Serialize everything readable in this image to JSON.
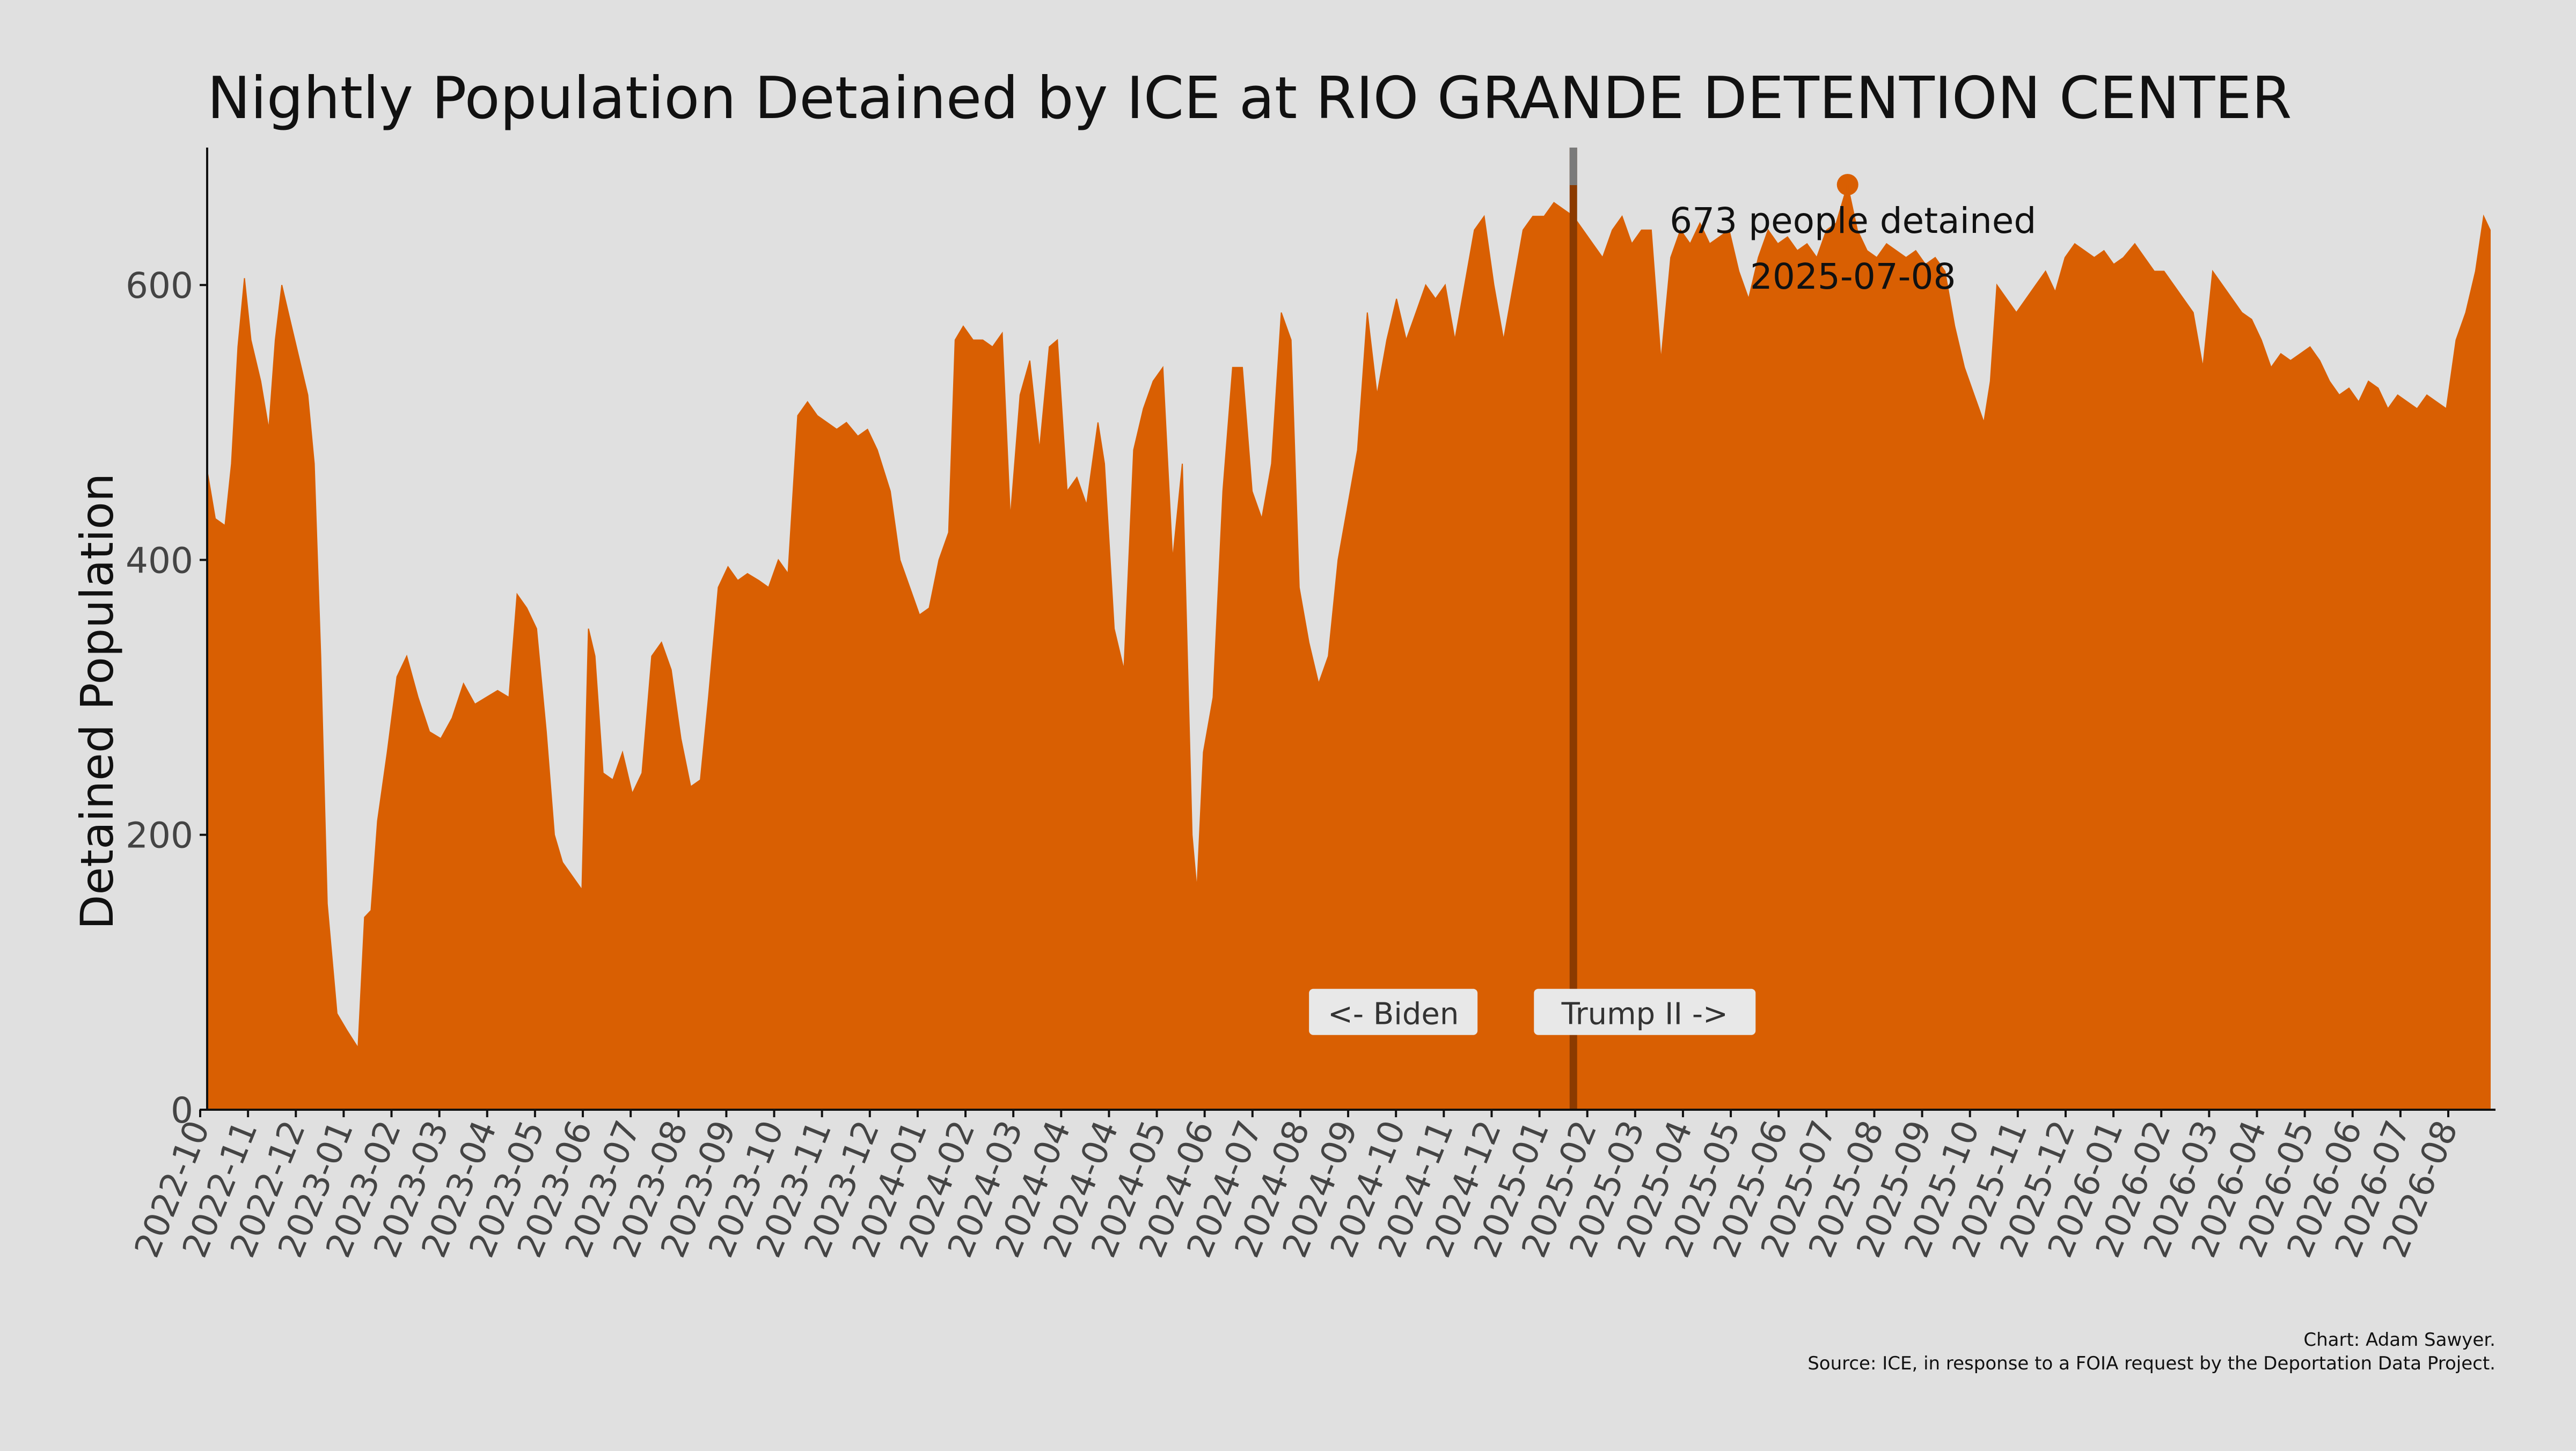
{
  "chart_data": {
    "type": "area",
    "title": "Nightly Population Detained by ICE at RIO GRANDE DETENTION CENTER",
    "xlabel": "",
    "ylabel": "Detained Population",
    "ylim": [
      0,
      700
    ],
    "y_ticks": [
      0,
      200,
      400,
      600
    ],
    "x_range": [
      "2022-10-01",
      "2026-08-08"
    ],
    "x_tick_labels": [
      "2022-10",
      "2022-11",
      "2022-12",
      "2023-01",
      "2023-02",
      "2023-03",
      "2023-04",
      "2023-05",
      "2023-06",
      "2023-07",
      "2023-08",
      "2023-09",
      "2023-10",
      "2023-11",
      "2023-12",
      "2024-01",
      "2024-02",
      "2024-03",
      "2024-04",
      "2024-04",
      "2024-05",
      "2024-06",
      "2024-07",
      "2024-08",
      "2024-09",
      "2024-10",
      "2024-11",
      "2024-12",
      "2025-01",
      "2025-02",
      "2025-03",
      "2025-04",
      "2025-05",
      "2025-06",
      "2025-07",
      "2025-08",
      "2025-09",
      "2025-10",
      "2025-11",
      "2025-12",
      "2026-01",
      "2026-02",
      "2026-03",
      "2026-04",
      "2026-05",
      "2026-06",
      "2026-07",
      "2026-08"
    ],
    "grid": false,
    "colors": {
      "fill": "#d95f02",
      "divider": "#8b3a00",
      "divider_top": "#7a7a7a",
      "background": "#e0e0e0",
      "label_box": "#e8e8e8"
    },
    "series": [
      {
        "values": [
          [
            "2022-10-01",
            465
          ],
          [
            "2022-10-06",
            430
          ],
          [
            "2022-10-12",
            425
          ],
          [
            "2022-10-16",
            470
          ],
          [
            "2022-10-20",
            555
          ],
          [
            "2022-10-24",
            605
          ],
          [
            "2022-10-28",
            560
          ],
          [
            "2022-11-03",
            530
          ],
          [
            "2022-11-08",
            495
          ],
          [
            "2022-11-12",
            560
          ],
          [
            "2022-11-16",
            600
          ],
          [
            "2022-11-22",
            570
          ],
          [
            "2022-11-28",
            540
          ],
          [
            "2022-12-02",
            520
          ],
          [
            "2022-12-06",
            470
          ],
          [
            "2022-12-10",
            330
          ],
          [
            "2022-12-14",
            150
          ],
          [
            "2022-12-20",
            70
          ],
          [
            "2022-12-26",
            58
          ],
          [
            "2023-01-02",
            45
          ],
          [
            "2023-01-06",
            140
          ],
          [
            "2023-01-10",
            145
          ],
          [
            "2023-01-14",
            210
          ],
          [
            "2023-01-20",
            260
          ],
          [
            "2023-01-26",
            315
          ],
          [
            "2023-02-01",
            330
          ],
          [
            "2023-02-08",
            300
          ],
          [
            "2023-02-15",
            275
          ],
          [
            "2023-02-22",
            270
          ],
          [
            "2023-03-01",
            285
          ],
          [
            "2023-03-08",
            310
          ],
          [
            "2023-03-15",
            295
          ],
          [
            "2023-03-22",
            300
          ],
          [
            "2023-03-29",
            305
          ],
          [
            "2023-04-05",
            300
          ],
          [
            "2023-04-10",
            375
          ],
          [
            "2023-04-16",
            365
          ],
          [
            "2023-04-22",
            350
          ],
          [
            "2023-04-28",
            275
          ],
          [
            "2023-05-03",
            200
          ],
          [
            "2023-05-08",
            180
          ],
          [
            "2023-05-14",
            170
          ],
          [
            "2023-05-20",
            160
          ],
          [
            "2023-05-24",
            350
          ],
          [
            "2023-05-28",
            330
          ],
          [
            "2023-06-02",
            245
          ],
          [
            "2023-06-08",
            240
          ],
          [
            "2023-06-14",
            260
          ],
          [
            "2023-06-20",
            230
          ],
          [
            "2023-06-26",
            245
          ],
          [
            "2023-07-02",
            330
          ],
          [
            "2023-07-08",
            340
          ],
          [
            "2023-07-14",
            320
          ],
          [
            "2023-07-20",
            270
          ],
          [
            "2023-07-26",
            235
          ],
          [
            "2023-08-01",
            240
          ],
          [
            "2023-08-06",
            300
          ],
          [
            "2023-08-12",
            380
          ],
          [
            "2023-08-18",
            395
          ],
          [
            "2023-08-24",
            385
          ],
          [
            "2023-08-30",
            390
          ],
          [
            "2023-09-06",
            385
          ],
          [
            "2023-09-12",
            380
          ],
          [
            "2023-09-18",
            400
          ],
          [
            "2023-09-24",
            390
          ],
          [
            "2023-09-30",
            505
          ],
          [
            "2023-10-06",
            515
          ],
          [
            "2023-10-12",
            505
          ],
          [
            "2023-10-18",
            500
          ],
          [
            "2023-10-24",
            495
          ],
          [
            "2023-10-30",
            500
          ],
          [
            "2023-11-06",
            490
          ],
          [
            "2023-11-12",
            495
          ],
          [
            "2023-11-18",
            480
          ],
          [
            "2023-11-26",
            450
          ],
          [
            "2023-12-02",
            400
          ],
          [
            "2023-12-08",
            380
          ],
          [
            "2023-12-14",
            360
          ],
          [
            "2023-12-20",
            365
          ],
          [
            "2023-12-26",
            400
          ],
          [
            "2024-01-01",
            420
          ],
          [
            "2024-01-05",
            560
          ],
          [
            "2024-01-10",
            570
          ],
          [
            "2024-01-16",
            560
          ],
          [
            "2024-01-22",
            560
          ],
          [
            "2024-01-28",
            555
          ],
          [
            "2024-02-03",
            565
          ],
          [
            "2024-02-08",
            430
          ],
          [
            "2024-02-14",
            520
          ],
          [
            "2024-02-20",
            545
          ],
          [
            "2024-02-26",
            480
          ],
          [
            "2024-03-03",
            555
          ],
          [
            "2024-03-08",
            560
          ],
          [
            "2024-03-14",
            450
          ],
          [
            "2024-03-20",
            460
          ],
          [
            "2024-03-26",
            440
          ],
          [
            "2024-04-02",
            500
          ],
          [
            "2024-04-06",
            470
          ],
          [
            "2024-04-12",
            350
          ],
          [
            "2024-04-18",
            320
          ],
          [
            "2024-04-24",
            480
          ],
          [
            "2024-04-30",
            510
          ],
          [
            "2024-05-06",
            530
          ],
          [
            "2024-05-12",
            540
          ],
          [
            "2024-05-18",
            400
          ],
          [
            "2024-05-24",
            470
          ],
          [
            "2024-05-30",
            200
          ],
          [
            "2024-06-02",
            160
          ],
          [
            "2024-06-06",
            260
          ],
          [
            "2024-06-12",
            300
          ],
          [
            "2024-06-18",
            450
          ],
          [
            "2024-06-24",
            540
          ],
          [
            "2024-06-30",
            540
          ],
          [
            "2024-07-06",
            450
          ],
          [
            "2024-07-12",
            430
          ],
          [
            "2024-07-18",
            470
          ],
          [
            "2024-07-24",
            580
          ],
          [
            "2024-07-30",
            560
          ],
          [
            "2024-08-04",
            380
          ],
          [
            "2024-08-10",
            340
          ],
          [
            "2024-08-16",
            310
          ],
          [
            "2024-08-22",
            330
          ],
          [
            "2024-08-28",
            400
          ],
          [
            "2024-09-03",
            440
          ],
          [
            "2024-09-09",
            480
          ],
          [
            "2024-09-15",
            580
          ],
          [
            "2024-09-21",
            520
          ],
          [
            "2024-09-27",
            560
          ],
          [
            "2024-10-03",
            590
          ],
          [
            "2024-10-09",
            560
          ],
          [
            "2024-10-15",
            580
          ],
          [
            "2024-10-21",
            600
          ],
          [
            "2024-10-27",
            590
          ],
          [
            "2024-11-02",
            600
          ],
          [
            "2024-11-08",
            560
          ],
          [
            "2024-11-14",
            600
          ],
          [
            "2024-11-20",
            640
          ],
          [
            "2024-11-26",
            650
          ],
          [
            "2024-12-02",
            600
          ],
          [
            "2024-12-08",
            560
          ],
          [
            "2024-12-14",
            600
          ],
          [
            "2024-12-20",
            640
          ],
          [
            "2024-12-26",
            650
          ],
          [
            "2025-01-02",
            650
          ],
          [
            "2025-01-08",
            660
          ],
          [
            "2025-01-14",
            655
          ],
          [
            "2025-01-20",
            650
          ],
          [
            "2025-01-26",
            640
          ],
          [
            "2025-02-01",
            630
          ],
          [
            "2025-02-07",
            620
          ],
          [
            "2025-02-13",
            640
          ],
          [
            "2025-02-19",
            650
          ],
          [
            "2025-02-25",
            630
          ],
          [
            "2025-03-03",
            640
          ],
          [
            "2025-03-09",
            640
          ],
          [
            "2025-03-15",
            545
          ],
          [
            "2025-03-21",
            620
          ],
          [
            "2025-03-27",
            640
          ],
          [
            "2025-04-02",
            630
          ],
          [
            "2025-04-08",
            645
          ],
          [
            "2025-04-14",
            630
          ],
          [
            "2025-04-20",
            635
          ],
          [
            "2025-04-26",
            640
          ],
          [
            "2025-05-02",
            610
          ],
          [
            "2025-05-08",
            590
          ],
          [
            "2025-05-14",
            620
          ],
          [
            "2025-05-20",
            640
          ],
          [
            "2025-05-26",
            630
          ],
          [
            "2025-06-01",
            635
          ],
          [
            "2025-06-07",
            625
          ],
          [
            "2025-06-13",
            630
          ],
          [
            "2025-06-19",
            620
          ],
          [
            "2025-06-25",
            640
          ],
          [
            "2025-07-01",
            645
          ],
          [
            "2025-07-08",
            673
          ],
          [
            "2025-07-14",
            640
          ],
          [
            "2025-07-20",
            625
          ],
          [
            "2025-07-26",
            620
          ],
          [
            "2025-08-01",
            630
          ],
          [
            "2025-08-07",
            625
          ],
          [
            "2025-08-13",
            620
          ],
          [
            "2025-08-19",
            625
          ],
          [
            "2025-08-25",
            615
          ],
          [
            "2025-08-31",
            620
          ],
          [
            "2025-09-06",
            610
          ],
          [
            "2025-09-12",
            570
          ],
          [
            "2025-09-18",
            540
          ],
          [
            "2025-09-24",
            520
          ],
          [
            "2025-09-30",
            500
          ],
          [
            "2025-10-04",
            530
          ],
          [
            "2025-10-08",
            600
          ],
          [
            "2025-10-14",
            590
          ],
          [
            "2025-10-20",
            580
          ],
          [
            "2025-10-26",
            590
          ],
          [
            "2025-11-01",
            600
          ],
          [
            "2025-11-07",
            610
          ],
          [
            "2025-11-13",
            595
          ],
          [
            "2025-11-19",
            620
          ],
          [
            "2025-11-25",
            630
          ],
          [
            "2025-12-01",
            625
          ],
          [
            "2025-12-07",
            620
          ],
          [
            "2025-12-13",
            625
          ],
          [
            "2025-12-19",
            615
          ],
          [
            "2025-12-25",
            620
          ],
          [
            "2026-01-01",
            630
          ],
          [
            "2026-01-07",
            620
          ],
          [
            "2026-01-13",
            610
          ],
          [
            "2026-01-19",
            610
          ],
          [
            "2026-01-25",
            600
          ],
          [
            "2026-01-31",
            590
          ],
          [
            "2026-02-06",
            580
          ],
          [
            "2026-02-12",
            540
          ],
          [
            "2026-02-18",
            610
          ],
          [
            "2026-02-24",
            600
          ],
          [
            "2026-03-02",
            590
          ],
          [
            "2026-03-08",
            580
          ],
          [
            "2026-03-14",
            575
          ],
          [
            "2026-03-20",
            560
          ],
          [
            "2026-03-26",
            540
          ],
          [
            "2026-04-01",
            550
          ],
          [
            "2026-04-07",
            545
          ],
          [
            "2026-04-13",
            550
          ],
          [
            "2026-04-19",
            555
          ],
          [
            "2026-04-25",
            545
          ],
          [
            "2026-05-01",
            530
          ],
          [
            "2026-05-07",
            520
          ],
          [
            "2026-05-13",
            525
          ],
          [
            "2026-05-19",
            515
          ],
          [
            "2026-05-25",
            530
          ],
          [
            "2026-05-31",
            525
          ],
          [
            "2026-06-06",
            510
          ],
          [
            "2026-06-12",
            520
          ],
          [
            "2026-06-18",
            515
          ],
          [
            "2026-06-24",
            510
          ],
          [
            "2026-06-30",
            520
          ],
          [
            "2026-07-06",
            515
          ],
          [
            "2026-07-12",
            510
          ],
          [
            "2026-07-18",
            560
          ],
          [
            "2026-07-24",
            580
          ],
          [
            "2026-07-30",
            610
          ],
          [
            "2026-08-04",
            650
          ],
          [
            "2026-08-08",
            640
          ]
        ]
      }
    ],
    "divider_date": "2025-01-20",
    "period_labels": [
      {
        "text": "<- Biden",
        "date": "2024-10-01",
        "value": 70
      },
      {
        "text": "Trump II ->",
        "date": "2025-03-05",
        "value": 70
      }
    ],
    "annotation": {
      "date": "2025-07-08",
      "value": 673,
      "line1": "673 people detained",
      "line2": "2025-07-08"
    },
    "credit_line1": "Chart: Adam Sawyer.",
    "credit_line2": "Source: ICE, in response to a FOIA request by the Deportation Data Project."
  }
}
